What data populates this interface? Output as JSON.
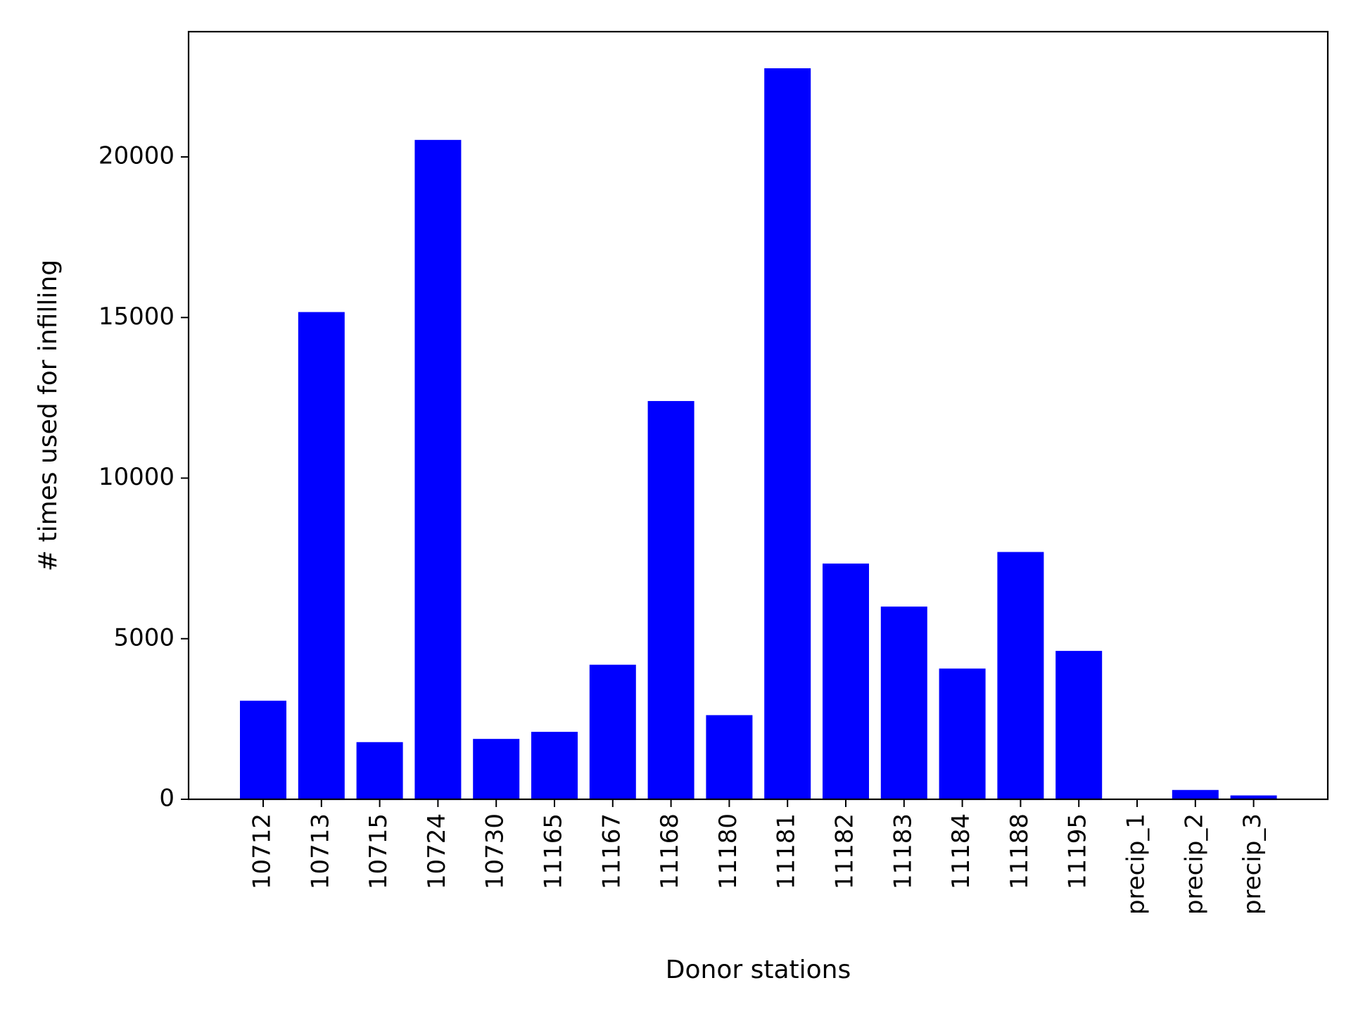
{
  "chart_data": {
    "type": "bar",
    "title": "",
    "xlabel": "Donor stations",
    "ylabel": "# times used for infilling",
    "categories": [
      "10712",
      "10713",
      "10715",
      "10724",
      "10730",
      "11165",
      "11167",
      "11168",
      "11180",
      "11181",
      "11182",
      "11183",
      "11184",
      "11188",
      "11195",
      "precip_1",
      "precip_2",
      "precip_3"
    ],
    "values": [
      3070,
      15170,
      1780,
      20530,
      1880,
      2100,
      4190,
      12400,
      2620,
      22760,
      7340,
      6000,
      4070,
      7700,
      4620,
      0,
      290,
      120
    ],
    "ylim": [
      0,
      23900
    ],
    "yticks": [
      0,
      5000,
      10000,
      15000,
      20000
    ],
    "colors": {
      "bar": "#0000ff",
      "axes": "#000000",
      "background": "#ffffff"
    },
    "grid": false,
    "legend": "none"
  }
}
